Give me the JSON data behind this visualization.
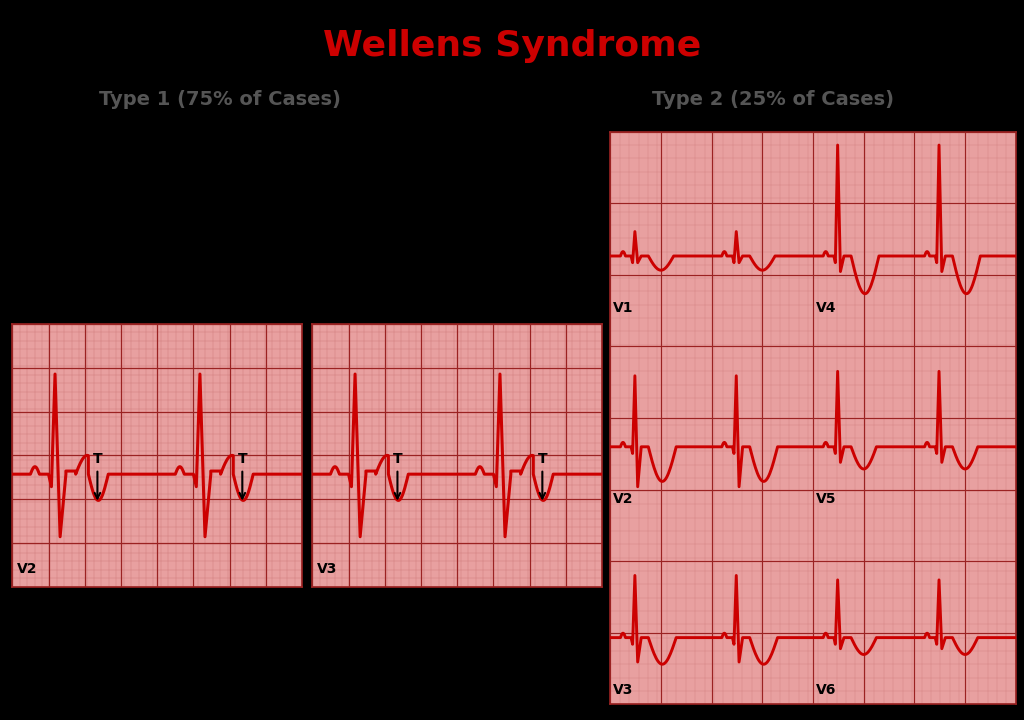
{
  "title": "Wellens Syndrome",
  "type1_label": "Type 1 (75% of Cases)",
  "type2_label": "Type 2 (25% of Cases)",
  "bg_color": "#000000",
  "ecg_bg_color": "#e8a0a0",
  "grid_major_color": "#9b2222",
  "grid_minor_color": "#cc7777",
  "ecg_line_color": "#cc0000",
  "title_color": "#cc0000",
  "subtitle_color": "#555555",
  "lead_label_color": "#000000",
  "title_fontsize": 26,
  "subtitle_fontsize": 14,
  "lead_fontsize": 10
}
